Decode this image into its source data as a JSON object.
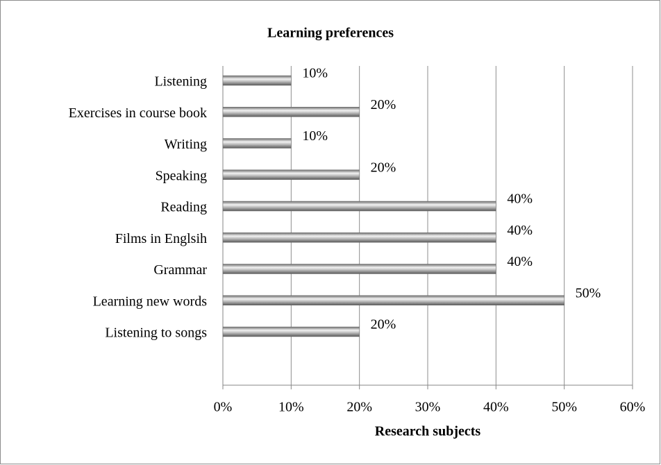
{
  "chart_data": {
    "type": "bar",
    "orientation": "horizontal",
    "title": "Learning preferences",
    "x_label": "Research subjects",
    "categories": [
      "Listening",
      "Exercises in course book",
      "Writing",
      "Speaking",
      "Reading",
      "Films in Englsih",
      "Grammar",
      "Learning new words",
      "Listening to songs"
    ],
    "values": [
      10,
      20,
      10,
      20,
      40,
      40,
      40,
      50,
      20
    ],
    "value_labels": [
      "10%",
      "20%",
      "10%",
      "20%",
      "40%",
      "40%",
      "40%",
      "50%",
      "20%"
    ],
    "color": "#9a9a9a",
    "xlim": [
      0,
      60
    ],
    "xticks": [
      {
        "value": 0,
        "label": "0%"
      },
      {
        "value": 10,
        "label": "10%"
      },
      {
        "value": 20,
        "label": "20%"
      },
      {
        "value": 30,
        "label": "30%"
      },
      {
        "value": 40,
        "label": "40%"
      },
      {
        "value": 50,
        "label": "50%"
      },
      {
        "value": 60,
        "label": "60%"
      }
    ],
    "grid": true
  }
}
